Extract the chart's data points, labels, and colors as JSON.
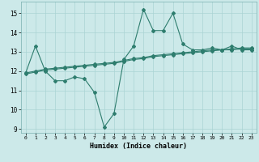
{
  "line_b_x": [
    0,
    1,
    2,
    3,
    4,
    5,
    6,
    7,
    8,
    9,
    10,
    11,
    12,
    13,
    14,
    15,
    16,
    17,
    18,
    19,
    20,
    21,
    22,
    23
  ],
  "line_b_y": [
    11.9,
    13.3,
    12.0,
    11.5,
    11.5,
    11.7,
    11.6,
    10.9,
    9.1,
    9.8,
    12.6,
    13.3,
    15.2,
    14.1,
    14.1,
    15.0,
    13.4,
    13.1,
    13.1,
    13.2,
    13.1,
    13.3,
    13.1,
    13.1
  ],
  "line_t_x": [
    0,
    1,
    2,
    3,
    4,
    5,
    6,
    7,
    8,
    9,
    10,
    11,
    12,
    13,
    14,
    15,
    16,
    17,
    18,
    19,
    20,
    21,
    22,
    23
  ],
  "line_t_y": [
    11.9,
    12.0,
    12.1,
    12.15,
    12.2,
    12.25,
    12.3,
    12.35,
    12.4,
    12.45,
    12.55,
    12.65,
    12.7,
    12.8,
    12.85,
    12.9,
    12.95,
    13.0,
    13.05,
    13.1,
    13.1,
    13.15,
    13.2,
    13.2
  ],
  "line_m_x": [
    0,
    1,
    2,
    3,
    4,
    5,
    6,
    7,
    8,
    9,
    10,
    11,
    12,
    13,
    14,
    15,
    16,
    17,
    18,
    19,
    20,
    21,
    22,
    23
  ],
  "line_m_y": [
    11.85,
    11.95,
    12.05,
    12.1,
    12.15,
    12.2,
    12.25,
    12.3,
    12.35,
    12.4,
    12.5,
    12.6,
    12.65,
    12.75,
    12.8,
    12.85,
    12.9,
    12.95,
    13.0,
    13.05,
    13.1,
    13.1,
    13.15,
    13.15
  ],
  "color": "#2e7d6e",
  "bg_color": "#cce9e9",
  "grid_color": "#aad4d4",
  "xlabel": "Humidex (Indice chaleur)",
  "xlim": [
    -0.5,
    23.5
  ],
  "ylim": [
    8.8,
    15.6
  ],
  "yticks": [
    9,
    10,
    11,
    12,
    13,
    14,
    15
  ],
  "xticks": [
    0,
    1,
    2,
    3,
    4,
    5,
    6,
    7,
    8,
    9,
    10,
    11,
    12,
    13,
    14,
    15,
    16,
    17,
    18,
    19,
    20,
    21,
    22,
    23
  ],
  "markersize": 2.0,
  "linewidth": 0.8
}
